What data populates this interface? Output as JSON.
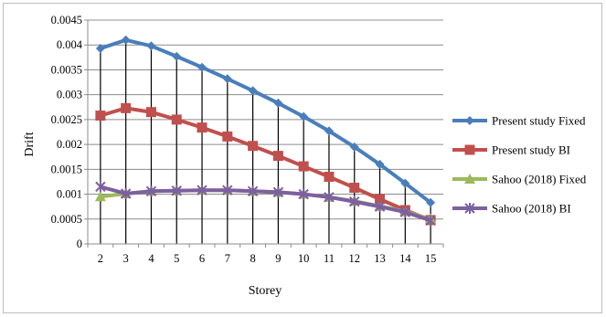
{
  "chart_data": {
    "type": "line",
    "title": "",
    "xlabel": "Storey",
    "ylabel": "Drift",
    "x": [
      2,
      3,
      4,
      5,
      6,
      7,
      8,
      9,
      10,
      11,
      12,
      13,
      14,
      15
    ],
    "ylim": [
      0,
      0.0045
    ],
    "yticks": [
      "0",
      "0.0005",
      "0.001",
      "0.0015",
      "0.002",
      "0.0025",
      "0.003",
      "0.0035",
      "0.004",
      "0.0045"
    ],
    "grid": true,
    "legend_position": "right",
    "series": [
      {
        "name": "Present study Fixed",
        "color": "#4a7ebb",
        "marker": "diamond",
        "values": [
          0.00393,
          0.0041,
          0.00398,
          0.00377,
          0.00355,
          0.00332,
          0.00308,
          0.00283,
          0.00256,
          0.00227,
          0.00195,
          0.0016,
          0.00122,
          0.00083
        ]
      },
      {
        "name": "Present study BI",
        "color": "#c0504d",
        "marker": "square",
        "values": [
          0.00258,
          0.00273,
          0.00265,
          0.0025,
          0.00234,
          0.00216,
          0.00197,
          0.00177,
          0.00156,
          0.00135,
          0.00113,
          0.0009,
          0.00068,
          0.00048
        ]
      },
      {
        "name": "Sahoo (2018) Fixed",
        "color": "#9bbb59",
        "marker": "triangle",
        "values": [
          0.00095,
          0.00101,
          0.00106,
          0.00107,
          0.00108,
          0.00108,
          0.00106,
          0.00104,
          0.001,
          0.00094,
          0.00086,
          0.00076,
          0.00065,
          0.0005
        ]
      },
      {
        "name": "Sahoo (2018) BI",
        "color": "#7d60a0",
        "marker": "x",
        "values": [
          0.00115,
          0.00101,
          0.00106,
          0.00107,
          0.00108,
          0.00108,
          0.00106,
          0.00104,
          0.001,
          0.00094,
          0.00085,
          0.00075,
          0.00064,
          0.00047
        ]
      }
    ]
  }
}
